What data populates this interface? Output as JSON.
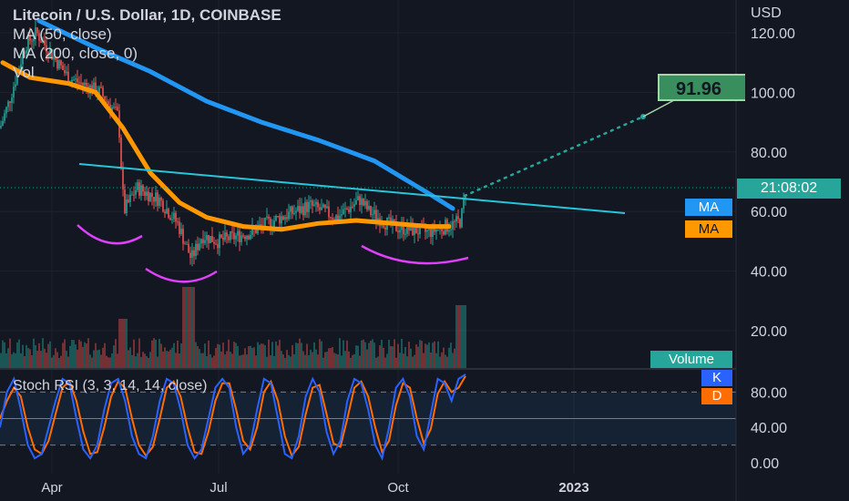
{
  "legend": {
    "title": "Litecoin / U.S. Dollar, 1D, COINBASE",
    "ma50": "MA (50, close)",
    "ma200": "MA (200, close, 0)",
    "vol": "Vol"
  },
  "stoch_legend": "Stoch RSI (3, 3, 14, 14, close)",
  "currency": "USD",
  "tags": {
    "ma_blue": "MA",
    "ma_orange": "MA",
    "countdown": "21:08:02",
    "volume": "Volume",
    "k": "K",
    "d": "D",
    "target": "91.96"
  },
  "colors": {
    "background": "#131722",
    "ma50": "#ff9800",
    "ma200": "#2196f3",
    "trendline": "#26c6da",
    "pattern_curves": "#e040fb",
    "up": "#26a69a",
    "down": "#ef5350",
    "stoch_k": "#2962ff",
    "stoch_d": "#ff6d00"
  },
  "chart_data": [
    {
      "type": "candlestick",
      "title": "Litecoin / U.S. Dollar, 1D, COINBASE",
      "ylabel": "USD",
      "ylim": [
        0,
        125
      ],
      "y_ticks": [
        "120.00",
        "100.00",
        "80.00",
        "60.00",
        "40.00",
        "20.00"
      ],
      "x_ticks": [
        "Apr",
        "Jul",
        "Oct",
        "2023"
      ],
      "series": [
        {
          "name": "MA (50, close)",
          "points": [
            [
              "Mar 5",
              110
            ],
            [
              "Mar 20",
              105
            ],
            [
              "Apr 10",
              103
            ],
            [
              "Apr 25",
              100
            ],
            [
              "May 10",
              88
            ],
            [
              "May 25",
              73
            ],
            [
              "Jun 10",
              63
            ],
            [
              "Jun 25",
              58
            ],
            [
              "Jul 15",
              55
            ],
            [
              "Aug 5",
              54
            ],
            [
              "Aug 25",
              56
            ],
            [
              "Sep 15",
              57
            ],
            [
              "Oct 5",
              56
            ],
            [
              "Oct 25",
              55
            ],
            [
              "Nov 5",
              55
            ]
          ]
        },
        {
          "name": "MA (200, close, 0)",
          "points": [
            [
              "Mar 25",
              124
            ],
            [
              "Apr 25",
              115
            ],
            [
              "May 25",
              107
            ],
            [
              "Jun 25",
              97
            ],
            [
              "Jul 25",
              90
            ],
            [
              "Aug 25",
              84
            ],
            [
              "Sep 25",
              77
            ],
            [
              "Oct 25",
              66
            ],
            [
              "Nov 7",
              61
            ]
          ]
        }
      ],
      "last_price": 66,
      "target_price": 91.96
    },
    {
      "type": "line",
      "title": "Stoch RSI (3, 3, 14, 14, close)",
      "ylim": [
        0,
        100
      ],
      "y_ticks": [
        "80.00",
        "40.00",
        "0.00"
      ],
      "bands": [
        80,
        50,
        20
      ],
      "series": [
        {
          "name": "K",
          "values": [
            40,
            80,
            95,
            60,
            20,
            5,
            10,
            40,
            70,
            95,
            90,
            50,
            15,
            5,
            20,
            60,
            90,
            95,
            70,
            30,
            10,
            5,
            30,
            70,
            95,
            90,
            60,
            20,
            5,
            15,
            50,
            85,
            95,
            85,
            40,
            10,
            20,
            60,
            95,
            90,
            50,
            10,
            5,
            30,
            75,
            95,
            80,
            35,
            10,
            25,
            70,
            95,
            90,
            60,
            20,
            5,
            40,
            85,
            95,
            75,
            30,
            15,
            55,
            95,
            90,
            70,
            95,
            100
          ]
        },
        {
          "name": "D",
          "values": [
            50,
            70,
            85,
            75,
            40,
            15,
            10,
            25,
            55,
            85,
            92,
            70,
            35,
            10,
            12,
            40,
            75,
            92,
            85,
            50,
            20,
            8,
            18,
            50,
            85,
            92,
            75,
            40,
            12,
            10,
            35,
            70,
            90,
            90,
            60,
            25,
            15,
            40,
            80,
            92,
            70,
            30,
            8,
            18,
            55,
            85,
            88,
            55,
            22,
            18,
            50,
            85,
            92,
            75,
            40,
            12,
            25,
            65,
            90,
            85,
            50,
            22,
            38,
            78,
            92,
            80,
            85,
            98
          ]
        }
      ]
    }
  ]
}
